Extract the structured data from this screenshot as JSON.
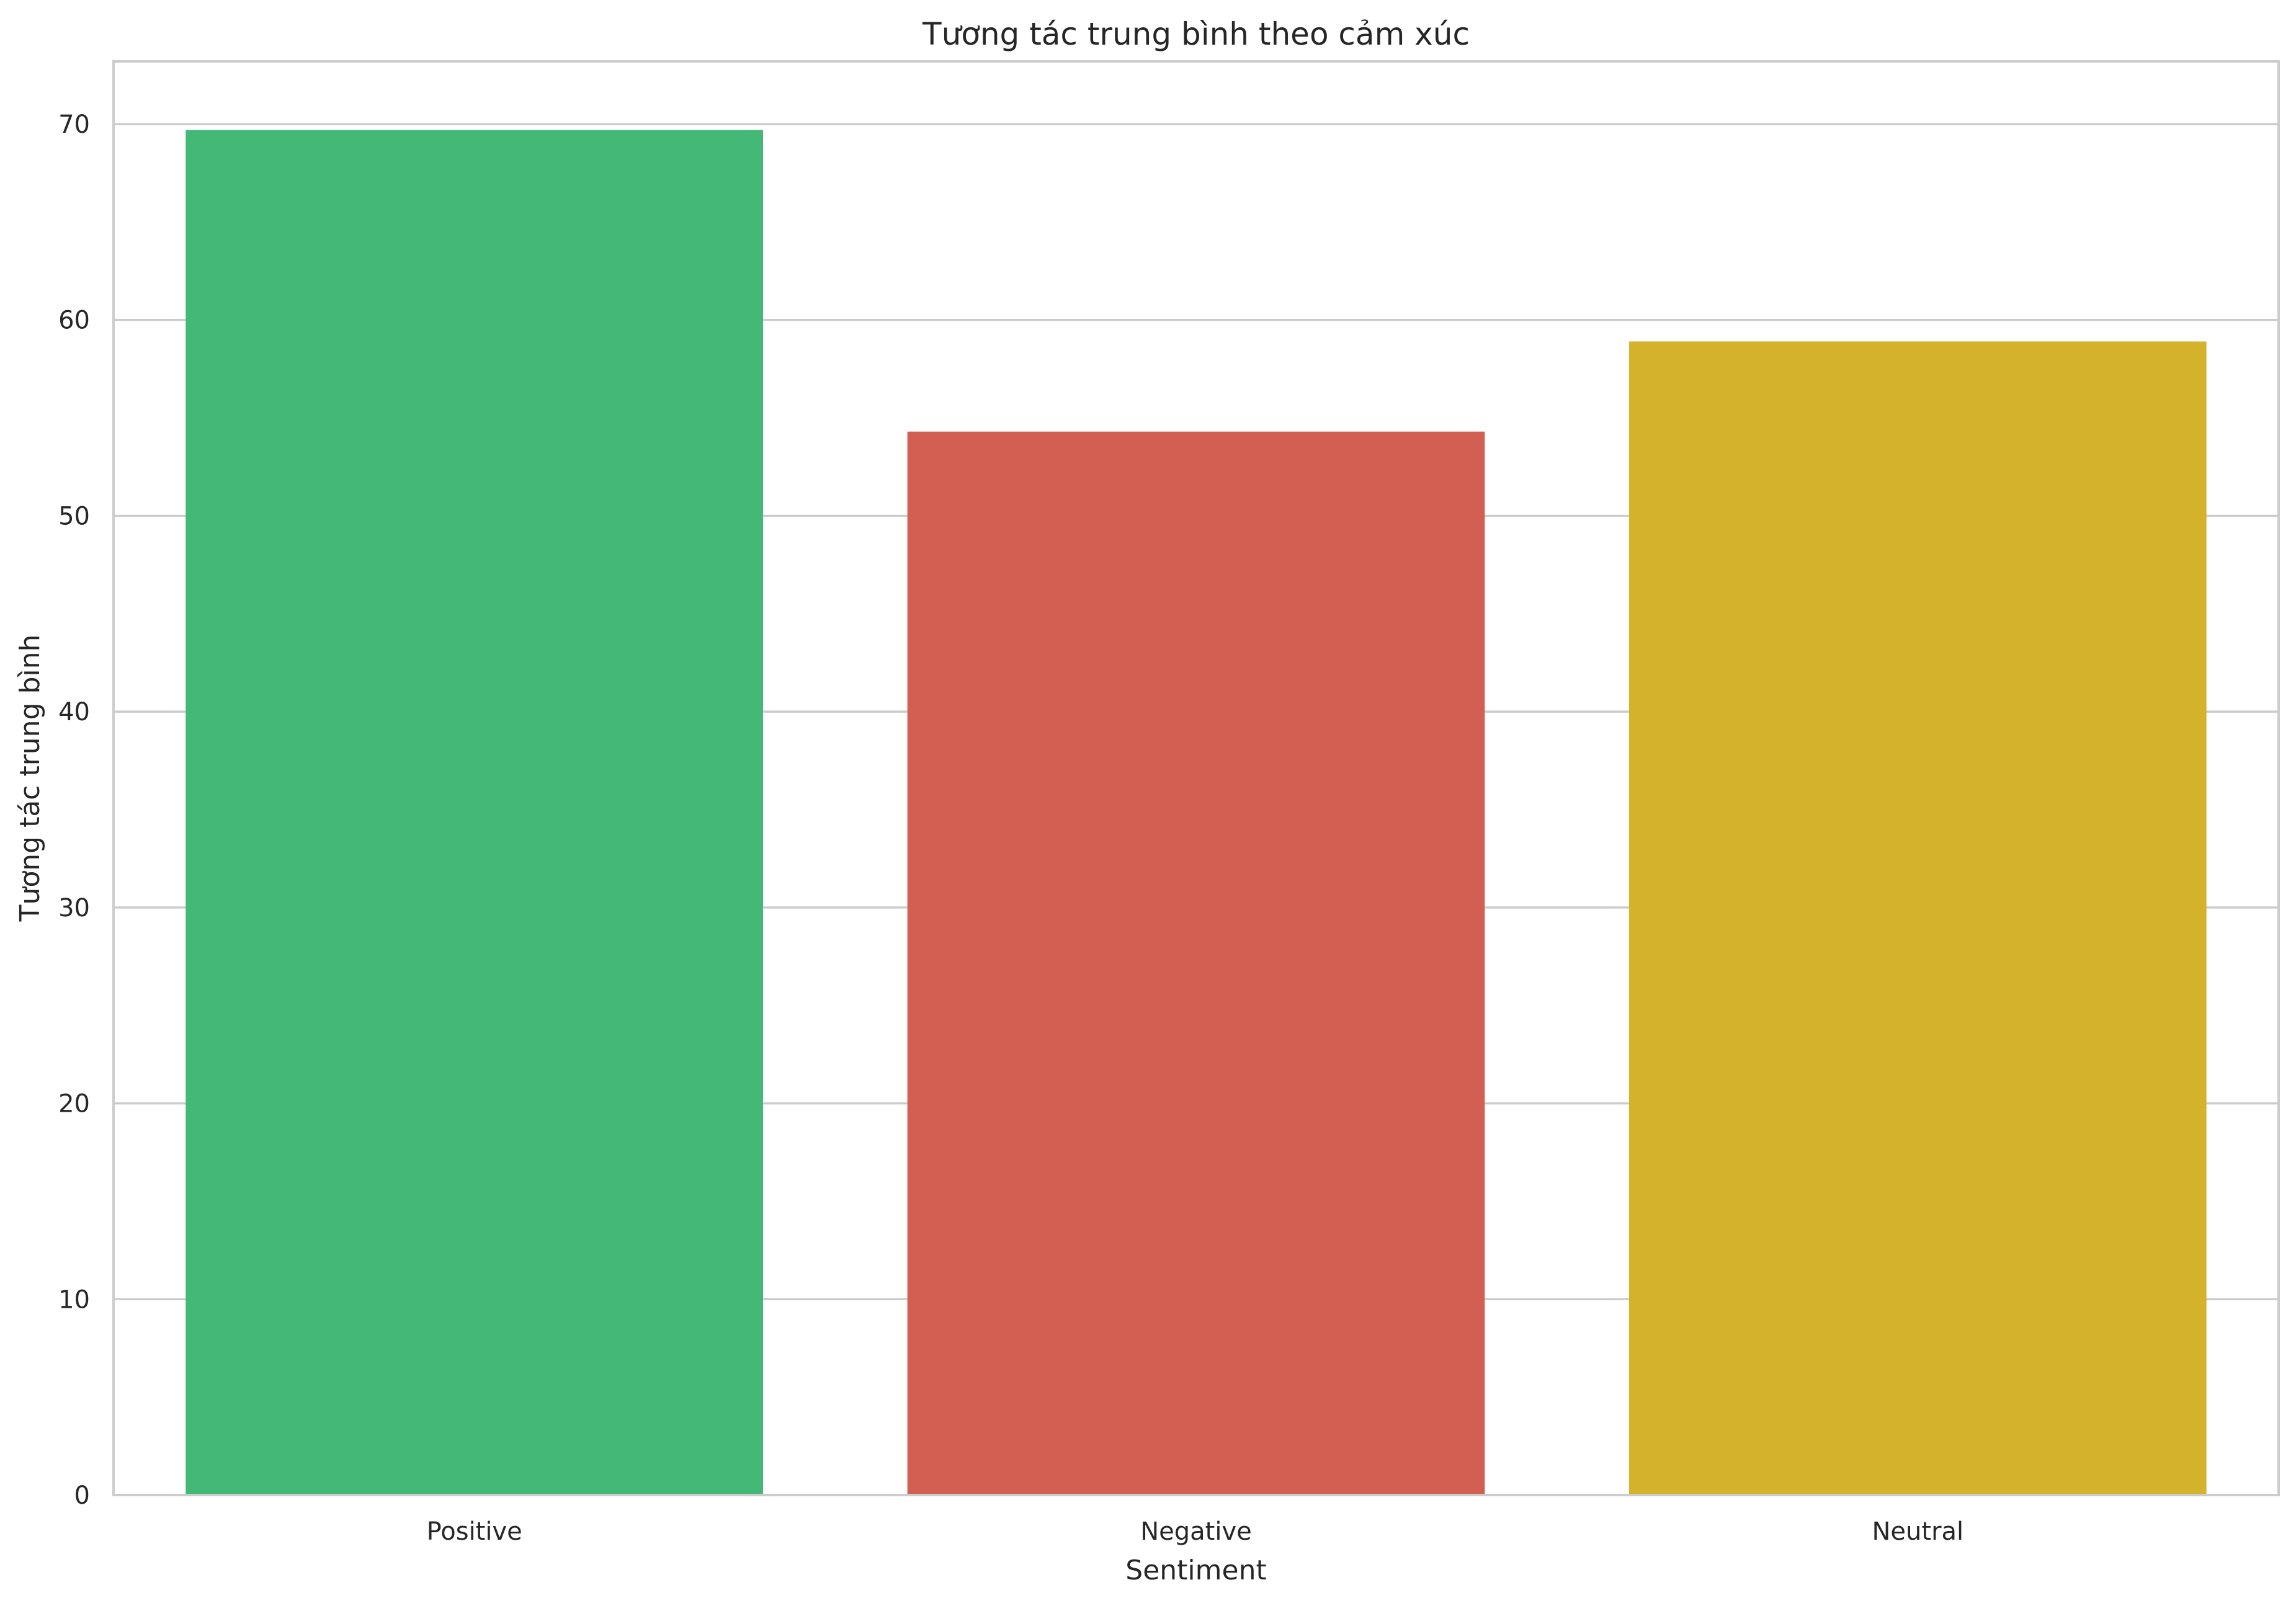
{
  "chart_data": {
    "type": "bar",
    "title": "Tương tác trung bình theo cảm xúc",
    "xlabel": "Sentiment",
    "ylabel": "Tương tác trung bình",
    "categories": [
      "Positive",
      "Negative",
      "Neutral"
    ],
    "values": [
      69.7,
      54.3,
      58.9
    ],
    "colors": [
      "#44b877",
      "#d35f52",
      "#d4b22c"
    ],
    "ylim": [
      0,
      73.2
    ],
    "yticks": [
      0,
      10,
      20,
      30,
      40,
      50,
      60,
      70
    ],
    "grid": "horizontal",
    "legend": "none"
  }
}
